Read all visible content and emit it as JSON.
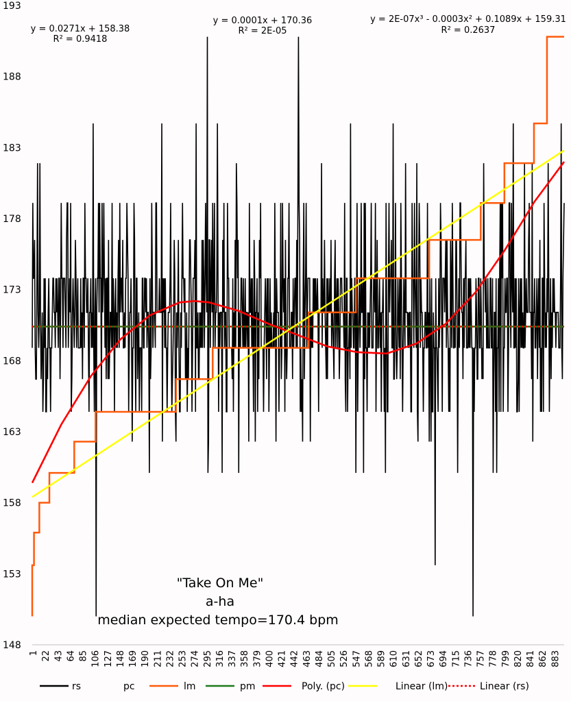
{
  "chart_data": {
    "type": "line",
    "title": "",
    "xlabel": "",
    "ylabel": "",
    "ylim": [
      148,
      193
    ],
    "yticks": [
      148,
      153,
      158,
      163,
      168,
      173,
      178,
      183,
      188,
      193
    ],
    "xlim": [
      1,
      900
    ],
    "xticks": [
      1,
      22,
      43,
      64,
      85,
      106,
      127,
      148,
      169,
      190,
      211,
      232,
      253,
      274,
      295,
      316,
      337,
      358,
      379,
      400,
      421,
      442,
      463,
      484,
      505,
      526,
      547,
      568,
      589,
      610,
      631,
      652,
      673,
      694,
      715,
      736,
      757,
      778,
      799,
      820,
      841,
      862,
      883
    ],
    "grid": false,
    "legend_position": "bottom",
    "series": [
      {
        "name": "rs",
        "color": "#000000",
        "style": "solid",
        "description": "noisy tempo series oscillating between ~150 and ~191 bpm around 170.4",
        "levels": [
          150.0,
          152.0,
          153.6,
          155.9,
          158.0,
          160.1,
          162.3,
          164.4,
          166.7,
          168.9,
          171.4,
          173.8,
          176.5,
          179.1,
          181.9,
          184.7,
          190.8
        ],
        "center": 170.4,
        "n_points": 900
      },
      {
        "name": "pc",
        "color": "none",
        "style": "none"
      },
      {
        "name": "lm",
        "color": "#ff5a0a",
        "style": "step",
        "x": [
          1,
          1,
          4,
          4,
          13,
          13,
          30,
          30,
          72,
          72,
          108,
          108,
          244,
          244,
          306,
          306,
          468,
          468,
          548,
          548,
          672,
          672,
          759,
          759,
          799,
          799,
          849,
          849,
          871,
          871,
          900
        ],
        "values": [
          150.0,
          153.6,
          153.6,
          155.9,
          155.9,
          158.0,
          158.0,
          160.1,
          160.1,
          162.3,
          162.3,
          164.4,
          164.4,
          166.7,
          166.7,
          168.9,
          168.9,
          171.4,
          171.4,
          173.8,
          173.8,
          176.5,
          176.5,
          179.1,
          179.1,
          181.9,
          181.9,
          184.7,
          184.7,
          190.8,
          190.8
        ]
      },
      {
        "name": "pm",
        "color": "#1a7a1a",
        "style": "solid",
        "x": [
          1,
          900
        ],
        "values": [
          170.4,
          170.4
        ]
      },
      {
        "name": "Poly. (pc)",
        "color": "#ff0000",
        "style": "solid",
        "trend": "cubic",
        "equation": "y = 2E-07x³ - 0.0003x² + 0.1089x + 159.31",
        "r2": "R² = 0.2637",
        "x": [
          1,
          50,
          100,
          150,
          200,
          250,
          275,
          300,
          350,
          400,
          450,
          500,
          550,
          600,
          650,
          700,
          750,
          800,
          850,
          900
        ],
        "values": [
          159.4,
          163.5,
          166.9,
          169.5,
          171.2,
          172.1,
          172.2,
          172.1,
          171.5,
          170.6,
          169.8,
          169.0,
          168.6,
          168.5,
          169.2,
          170.6,
          172.8,
          175.8,
          179.2,
          182.0
        ]
      },
      {
        "name": "Linear (lm)",
        "color": "#ffff00",
        "style": "solid",
        "trend": "linear",
        "equation": "y = 0.0271x + 158.38",
        "r2": "R² = 0.9418",
        "x": [
          1,
          900
        ],
        "values": [
          158.4,
          182.8
        ]
      },
      {
        "name": "Linear (rs)",
        "color": "#ff0000",
        "style": "dotted",
        "trend": "linear",
        "equation": "y = 0.0001x + 170.36",
        "r2": "R² = 2E-05",
        "x": [
          1,
          900
        ],
        "values": [
          170.4,
          170.4
        ]
      }
    ],
    "annotations": [
      {
        "text": "y = 0.0271x + 158.38",
        "sub": "R² = 0.9418"
      },
      {
        "text": "y = 0.0001x + 170.36",
        "sub": "R² = 2E-05"
      },
      {
        "text": "y = 2E-07x³ - 0.0003x² + 0.1089x + 159.31",
        "sub": "R² = 0.2637"
      },
      {
        "text": "\"Take On Me\""
      },
      {
        "text": "a-ha"
      },
      {
        "text": "median expected tempo=170.4 bpm"
      }
    ]
  },
  "labels": {
    "eq_linear_lm": "y = 0.0271x + 158.38",
    "r2_linear_lm": "R² = 0.9418",
    "eq_linear_rs": "y = 0.0001x + 170.36",
    "r2_linear_rs": "R² = 2E-05",
    "eq_poly_pc": "y = 2E-07x³ - 0.0003x² + 0.1089x + 159.31",
    "r2_poly_pc": "R² = 0.2637",
    "song_title": "\"Take On Me\"",
    "artist": "a-ha",
    "tempo_note": "median expected tempo=170.4 bpm"
  },
  "legend": [
    {
      "label": "rs",
      "color": "#000000",
      "style": "solid"
    },
    {
      "label": "pc",
      "color": "none",
      "style": "none"
    },
    {
      "label": "lm",
      "color": "#ff5a0a",
      "style": "solid"
    },
    {
      "label": "pm",
      "color": "#1a7a1a",
      "style": "solid"
    },
    {
      "label": "Poly. (pc)",
      "color": "#ff0000",
      "style": "solid"
    },
    {
      "label": "Linear (lm)",
      "color": "#ffff00",
      "style": "solid"
    },
    {
      "label": "Linear (rs)",
      "color": "#ff0000",
      "style": "dotted"
    }
  ]
}
